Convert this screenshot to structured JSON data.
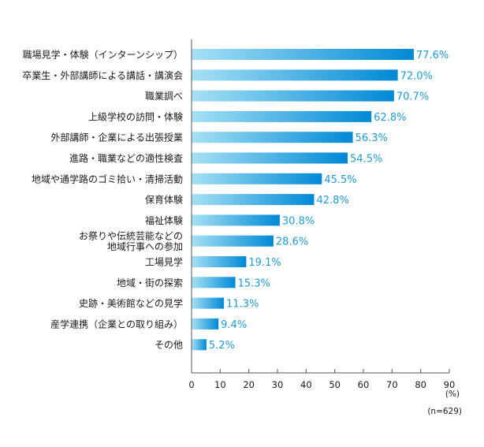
{
  "chart_data": {
    "type": "bar",
    "orientation": "horizontal",
    "categories": [
      "職場見学・体験（インターンシップ）",
      "卒業生・外部講師による講話・講演会",
      "職業調べ",
      "上級学校の訪問・体験",
      "外部講師・企業による出張授業",
      "進路・職業などの適性検査",
      "地域や通学路のゴミ拾い・清掃活動",
      "保育体験",
      "福祉体験",
      [
        "お祭りや伝統芸能などの",
        "地域行事への参加"
      ],
      "工場見学",
      "地域・街の探索",
      "史跡・美術館などの見学",
      "産学連携（企業との取り組み）",
      "その他"
    ],
    "values": [
      77.6,
      72.0,
      70.7,
      62.8,
      56.3,
      54.5,
      45.5,
      42.8,
      30.8,
      28.6,
      19.1,
      15.3,
      11.3,
      9.4,
      5.2
    ],
    "value_labels": [
      "77.6%",
      "72.0%",
      "70.7%",
      "62.8%",
      "56.3%",
      "54.5%",
      "45.5%",
      "42.8%",
      "30.8%",
      "28.6%",
      "19.1%",
      "15.3%",
      "11.3%",
      "9.4%",
      "5.2%"
    ],
    "xlim": [
      0,
      90
    ],
    "xticks": [
      0,
      10,
      20,
      30,
      40,
      50,
      60,
      70,
      80,
      90
    ],
    "unit": "(%)",
    "note": "(n=629)",
    "grid": false,
    "colors": {
      "bar_start": "#a6e1f5",
      "bar_end": "#0089d6",
      "value_text": "#1f9ad6",
      "axis": "#555555"
    }
  }
}
